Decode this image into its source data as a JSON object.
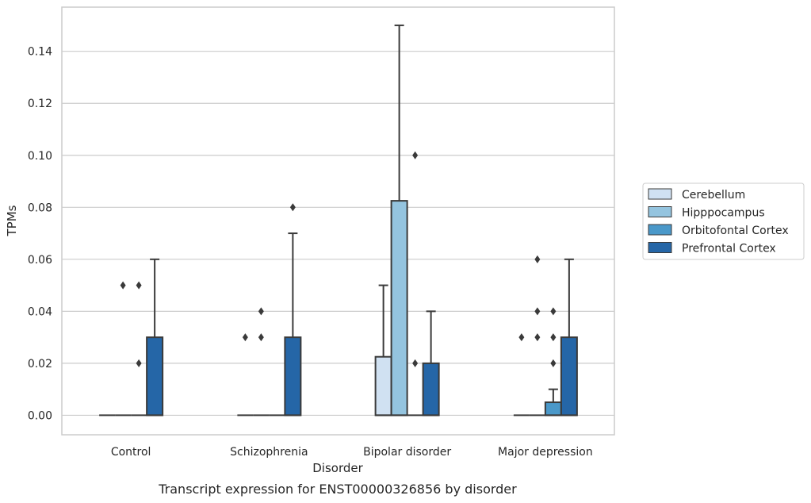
{
  "chart_data": {
    "type": "box",
    "caption": "Transcript expression for ENST00000326856 by disorder",
    "xlabel": "Disorder",
    "ylabel": "TPMs",
    "ylim": [
      -0.0075,
      0.157
    ],
    "yticks": [
      "0.00",
      "0.02",
      "0.04",
      "0.06",
      "0.08",
      "0.10",
      "0.12",
      "0.14"
    ],
    "grid": true,
    "legend_position": "right",
    "categories": [
      "Control",
      "Schizophrenia",
      "Bipolar disorder",
      "Major depression"
    ],
    "series": [
      {
        "name": "Cerebellum",
        "color": "#d0e1f2",
        "boxes": [
          {
            "q1": 0,
            "median": 0,
            "q3": 0,
            "whisker_low": 0,
            "whisker_high": 0,
            "outliers": []
          },
          {
            "q1": 0,
            "median": 0,
            "q3": 0,
            "whisker_low": 0,
            "whisker_high": 0,
            "outliers": [
              0.03
            ]
          },
          {
            "q1": 0,
            "median": 0,
            "q3": 0.0225,
            "whisker_low": 0,
            "whisker_high": 0.05,
            "outliers": []
          },
          {
            "q1": 0,
            "median": 0,
            "q3": 0,
            "whisker_low": 0,
            "whisker_high": 0,
            "outliers": [
              0.03
            ]
          }
        ]
      },
      {
        "name": "Hipppocampus",
        "color": "#94c4df",
        "boxes": [
          {
            "q1": 0,
            "median": 0,
            "q3": 0,
            "whisker_low": 0,
            "whisker_high": 0,
            "outliers": [
              0.05
            ]
          },
          {
            "q1": 0,
            "median": 0,
            "q3": 0,
            "whisker_low": 0,
            "whisker_high": 0,
            "outliers": [
              0.03,
              0.04
            ]
          },
          {
            "q1": 0,
            "median": 0,
            "q3": 0.0825,
            "whisker_low": 0,
            "whisker_high": 0.15,
            "outliers": []
          },
          {
            "q1": 0,
            "median": 0,
            "q3": 0,
            "whisker_low": 0,
            "whisker_high": 0,
            "outliers": [
              0.03,
              0.04,
              0.06
            ]
          }
        ]
      },
      {
        "name": "Orbitofontal Cortex",
        "color": "#4a98c9",
        "boxes": [
          {
            "q1": 0,
            "median": 0,
            "q3": 0,
            "whisker_low": 0,
            "whisker_high": 0,
            "outliers": [
              0.02,
              0.05
            ]
          },
          {
            "q1": 0,
            "median": 0,
            "q3": 0,
            "whisker_low": 0,
            "whisker_high": 0,
            "outliers": []
          },
          {
            "q1": 0,
            "median": 0,
            "q3": 0,
            "whisker_low": 0,
            "whisker_high": 0,
            "outliers": [
              0.02,
              0.1
            ]
          },
          {
            "q1": 0,
            "median": 0,
            "q3": 0.005,
            "whisker_low": 0,
            "whisker_high": 0.01,
            "outliers": [
              0.02,
              0.03,
              0.04
            ]
          }
        ]
      },
      {
        "name": "Prefrontal Cortex",
        "color": "#2566a7",
        "boxes": [
          {
            "q1": 0,
            "median": 0,
            "q3": 0.03,
            "whisker_low": 0,
            "whisker_high": 0.06,
            "outliers": []
          },
          {
            "q1": 0,
            "median": 0,
            "q3": 0.03,
            "whisker_low": 0,
            "whisker_high": 0.07,
            "outliers": [
              0.08
            ]
          },
          {
            "q1": 0,
            "median": 0,
            "q3": 0.02,
            "whisker_low": 0,
            "whisker_high": 0.04,
            "outliers": []
          },
          {
            "q1": 0,
            "median": 0,
            "q3": 0.03,
            "whisker_low": 0,
            "whisker_high": 0.06,
            "outliers": []
          }
        ]
      }
    ]
  }
}
